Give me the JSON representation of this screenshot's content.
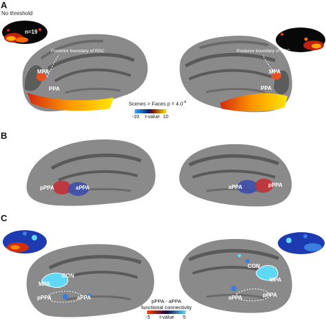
{
  "panel_a": {
    "letter": "A",
    "threshold_note": "No threshold",
    "n_label": "n=19",
    "boundary_label_left": "Posterior boundary of RSC",
    "boundary_label_right": "Posterior boundary of RSC",
    "roi_labels": {
      "mpa_left": "MPA",
      "ppa_left": "PPA",
      "mpa_right": "MPA",
      "ppa_right": "PPA"
    },
    "colorbar": {
      "title": "Scenes > Faces p = 4.0",
      "exponent": "-4",
      "label": "t-value",
      "min": "-10",
      "max": "10"
    }
  },
  "panel_b": {
    "letter": "B",
    "roi_labels": {
      "pppa_left": "pPPA",
      "appa_left": "aPPA",
      "appa_right": "aPPA",
      "pppa_right": "pPPA"
    }
  },
  "panel_c": {
    "letter": "C",
    "roi_labels": {
      "con_left": "CON",
      "mpa_left": "MPA",
      "pppa_left": "pPPA",
      "appa_left": "aPPA",
      "con_right": "CON",
      "mpa_right": "MPA",
      "appa_right": "aPPA",
      "pppa_right": "pPPA"
    },
    "colorbar": {
      "title_line1": "pPPA - aPPA",
      "title_line2": "functional connectivity",
      "label": "t-value",
      "min": "-5",
      "max": "5"
    }
  },
  "colors": {
    "brain_gray": "#8a8a8a",
    "sulcus_dark": "#5a5a5a",
    "hot": "#ffd400",
    "hot2": "#e8581a",
    "ppa_red": "#c0323a",
    "appa_blue": "#3f4faa",
    "cool": "#3a7ee0",
    "cyan": "#5fd8f5"
  }
}
